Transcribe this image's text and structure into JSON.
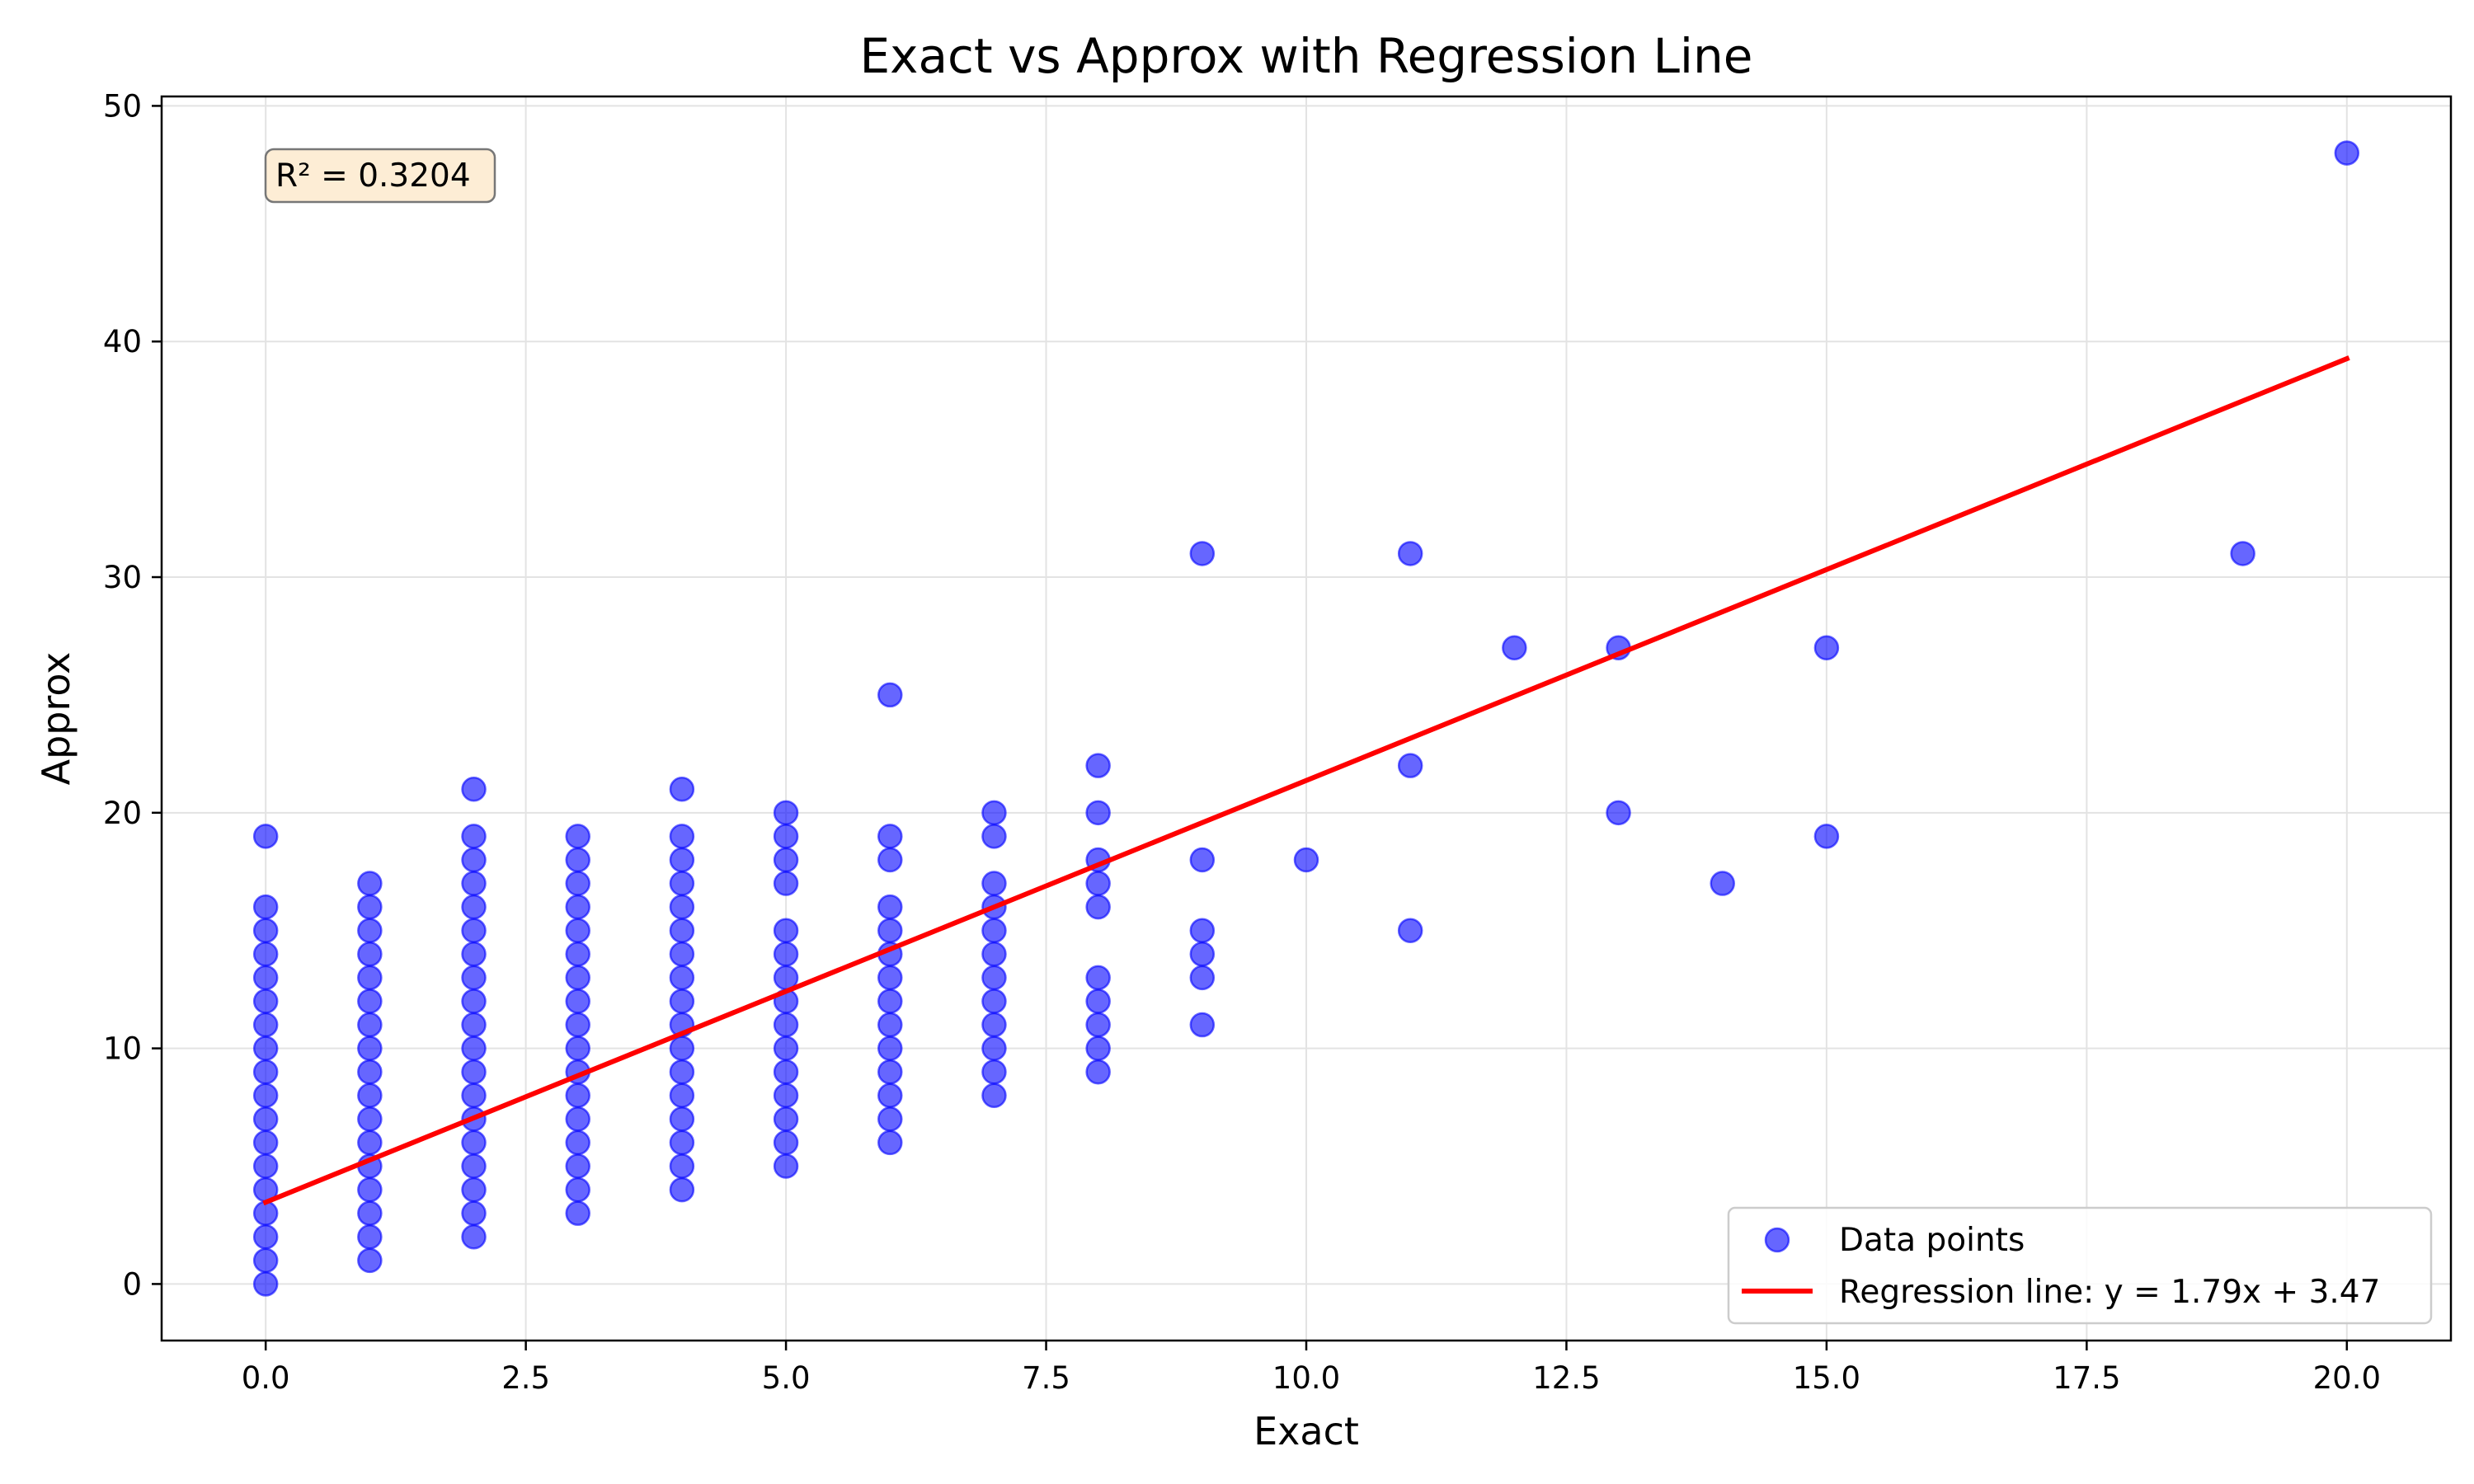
{
  "chart_data": {
    "type": "scatter",
    "title": "Exact vs Approx with Regression Line",
    "xlabel": "Exact",
    "ylabel": "Approx",
    "xlim": [
      -1,
      21
    ],
    "ylim": [
      -2.4,
      50.4
    ],
    "x_ticks": [
      0,
      2.5,
      5,
      7.5,
      10,
      12.5,
      15,
      17.5,
      20
    ],
    "x_tick_labels": [
      "0.0",
      "2.5",
      "5.0",
      "7.5",
      "10.0",
      "12.5",
      "15.0",
      "17.5",
      "20.0"
    ],
    "y_ticks": [
      0,
      10,
      20,
      30,
      40,
      50
    ],
    "y_tick_labels": [
      "0",
      "10",
      "20",
      "30",
      "40",
      "50"
    ],
    "grid": true,
    "legend_position": "bottom-right",
    "annotation": "R² = 0.3204",
    "colors": {
      "points": "#0000ff",
      "regression": "#ff0000",
      "annotation_bg": "#fdebd0"
    },
    "series": [
      {
        "name": "Data points",
        "type": "scatter",
        "points": [
          [
            0,
            0
          ],
          [
            0,
            1
          ],
          [
            0,
            2
          ],
          [
            0,
            3
          ],
          [
            0,
            4
          ],
          [
            0,
            5
          ],
          [
            0,
            6
          ],
          [
            0,
            7
          ],
          [
            0,
            8
          ],
          [
            0,
            9
          ],
          [
            0,
            10
          ],
          [
            0,
            11
          ],
          [
            0,
            12
          ],
          [
            0,
            13
          ],
          [
            0,
            14
          ],
          [
            0,
            15
          ],
          [
            0,
            16
          ],
          [
            0,
            19
          ],
          [
            1,
            1
          ],
          [
            1,
            2
          ],
          [
            1,
            3
          ],
          [
            1,
            4
          ],
          [
            1,
            5
          ],
          [
            1,
            6
          ],
          [
            1,
            7
          ],
          [
            1,
            8
          ],
          [
            1,
            9
          ],
          [
            1,
            10
          ],
          [
            1,
            11
          ],
          [
            1,
            12
          ],
          [
            1,
            13
          ],
          [
            1,
            14
          ],
          [
            1,
            15
          ],
          [
            1,
            16
          ],
          [
            1,
            17
          ],
          [
            2,
            2
          ],
          [
            2,
            3
          ],
          [
            2,
            4
          ],
          [
            2,
            5
          ],
          [
            2,
            6
          ],
          [
            2,
            7
          ],
          [
            2,
            8
          ],
          [
            2,
            9
          ],
          [
            2,
            10
          ],
          [
            2,
            11
          ],
          [
            2,
            12
          ],
          [
            2,
            13
          ],
          [
            2,
            14
          ],
          [
            2,
            15
          ],
          [
            2,
            16
          ],
          [
            2,
            17
          ],
          [
            2,
            18
          ],
          [
            2,
            19
          ],
          [
            2,
            21
          ],
          [
            3,
            3
          ],
          [
            3,
            4
          ],
          [
            3,
            5
          ],
          [
            3,
            6
          ],
          [
            3,
            7
          ],
          [
            3,
            8
          ],
          [
            3,
            9
          ],
          [
            3,
            10
          ],
          [
            3,
            11
          ],
          [
            3,
            12
          ],
          [
            3,
            13
          ],
          [
            3,
            14
          ],
          [
            3,
            15
          ],
          [
            3,
            16
          ],
          [
            3,
            17
          ],
          [
            3,
            18
          ],
          [
            3,
            19
          ],
          [
            4,
            4
          ],
          [
            4,
            5
          ],
          [
            4,
            6
          ],
          [
            4,
            7
          ],
          [
            4,
            8
          ],
          [
            4,
            9
          ],
          [
            4,
            10
          ],
          [
            4,
            11
          ],
          [
            4,
            12
          ],
          [
            4,
            13
          ],
          [
            4,
            14
          ],
          [
            4,
            15
          ],
          [
            4,
            16
          ],
          [
            4,
            17
          ],
          [
            4,
            18
          ],
          [
            4,
            19
          ],
          [
            4,
            21
          ],
          [
            5,
            5
          ],
          [
            5,
            6
          ],
          [
            5,
            7
          ],
          [
            5,
            8
          ],
          [
            5,
            9
          ],
          [
            5,
            10
          ],
          [
            5,
            11
          ],
          [
            5,
            12
          ],
          [
            5,
            13
          ],
          [
            5,
            14
          ],
          [
            5,
            15
          ],
          [
            5,
            17
          ],
          [
            5,
            18
          ],
          [
            5,
            19
          ],
          [
            5,
            20
          ],
          [
            6,
            6
          ],
          [
            6,
            7
          ],
          [
            6,
            8
          ],
          [
            6,
            9
          ],
          [
            6,
            10
          ],
          [
            6,
            11
          ],
          [
            6,
            12
          ],
          [
            6,
            13
          ],
          [
            6,
            14
          ],
          [
            6,
            15
          ],
          [
            6,
            16
          ],
          [
            6,
            18
          ],
          [
            6,
            19
          ],
          [
            6,
            25
          ],
          [
            7,
            8
          ],
          [
            7,
            9
          ],
          [
            7,
            10
          ],
          [
            7,
            11
          ],
          [
            7,
            12
          ],
          [
            7,
            13
          ],
          [
            7,
            14
          ],
          [
            7,
            15
          ],
          [
            7,
            16
          ],
          [
            7,
            17
          ],
          [
            7,
            19
          ],
          [
            7,
            20
          ],
          [
            8,
            9
          ],
          [
            8,
            10
          ],
          [
            8,
            11
          ],
          [
            8,
            12
          ],
          [
            8,
            13
          ],
          [
            8,
            16
          ],
          [
            8,
            17
          ],
          [
            8,
            18
          ],
          [
            8,
            20
          ],
          [
            8,
            22
          ],
          [
            9,
            11
          ],
          [
            9,
            13
          ],
          [
            9,
            14
          ],
          [
            9,
            15
          ],
          [
            9,
            18
          ],
          [
            9,
            31
          ],
          [
            10,
            18
          ],
          [
            11,
            15
          ],
          [
            11,
            22
          ],
          [
            11,
            31
          ],
          [
            12,
            27
          ],
          [
            13,
            20
          ],
          [
            13,
            27
          ],
          [
            14,
            17
          ],
          [
            15,
            19
          ],
          [
            15,
            27
          ],
          [
            19,
            31
          ],
          [
            20,
            48
          ]
        ]
      },
      {
        "name": "Regression line: y = 1.79x + 3.47",
        "type": "line",
        "slope": 1.79,
        "intercept": 3.47,
        "x_range": [
          0,
          20
        ]
      }
    ]
  }
}
